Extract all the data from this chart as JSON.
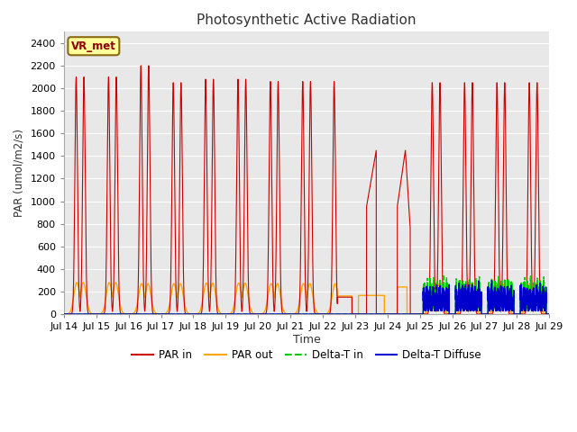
{
  "title": "Photosynthetic Active Radiation",
  "ylabel": "PAR (umol/m2/s)",
  "xlabel": "Time",
  "ylim": [
    0,
    2500
  ],
  "yticks": [
    0,
    200,
    400,
    600,
    800,
    1000,
    1200,
    1400,
    1600,
    1800,
    2000,
    2200,
    2400
  ],
  "fig_bg_color": "#ffffff",
  "plot_bg_color": "#e8e8e8",
  "grid_color": "#ffffff",
  "par_in_color": "#cc0000",
  "par_out_color": "#ffa500",
  "delta_t_in_color": "#00cc00",
  "delta_t_diffuse_color": "#0000cc",
  "watermark_text": "VR_met",
  "watermark_color": "#8b0000",
  "watermark_bg": "#ffff99",
  "watermark_border": "#8b6914",
  "day_labels": [
    "Jul 14",
    "Jul 15",
    "Jul 16",
    "Jul 17",
    "Jul 18",
    "Jul 19",
    "Jul 20",
    "Jul 21",
    "Jul 22",
    "Jul 23",
    "Jul 24",
    "Jul 25",
    "Jul 26",
    "Jul 27",
    "Jul 28",
    "Jul 29"
  ],
  "legend_items": [
    "PAR in",
    "PAR out",
    "Delta-T in",
    "Delta-T Diffuse"
  ]
}
